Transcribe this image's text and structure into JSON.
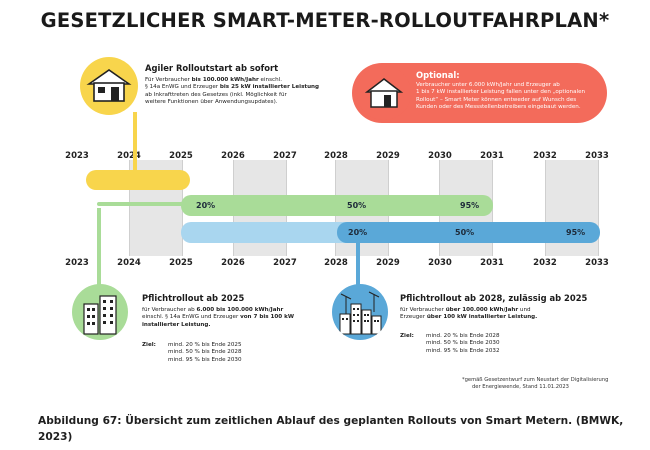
{
  "title": "GESETZLICHER SMART-METER-ROLLOUTFAHRPLAN*",
  "years": [
    "2023",
    "2024",
    "2025",
    "2026",
    "2027",
    "2028",
    "2029",
    "2030",
    "2031",
    "2032",
    "2033"
  ],
  "agile": {
    "heading": "Agiler Rolloutstart ab sofort",
    "line1_a": "Für Verbraucher ",
    "line1_b": "bis 100.000 kWh/Jahr",
    "line1_c": " einschl.",
    "line2_a": "§ 14a EnWG und Erzeuger ",
    "line2_b": "bis 25 kW installierter Leistung",
    "line3": "ab Inkrafttreten des Gesetzes (inkl. Möglichkeit für",
    "line4": "weitere Funktionen über Anwendungsupdates)."
  },
  "optional": {
    "heading": "Optional:",
    "line1": "Verbraucher unter 6.000 kWh/Jahr und Erzeuger ab",
    "line2": "1 bis 7 kW installierter Leistung fallen unter den „optionalen",
    "line3": "Rollout“ – Smart Meter können entweder auf Wunsch des",
    "line4": "Kunden oder des Messstellenbetreibers eingebaut werden."
  },
  "bar_green": {
    "p1": "20%",
    "p2": "50%",
    "p3": "95%"
  },
  "bar_blue": {
    "p1": "20%",
    "p2": "50%",
    "p3": "95%"
  },
  "pflicht2025": {
    "heading": "Pflichtrollout ab 2025",
    "line1_a": "für Verbraucher ab ",
    "line1_b": "6.000 bis 100.000 kWh/Jahr",
    "line2_a": "einschl. § 14a EnWG und Erzeuger ",
    "line2_b": "von 7 bis 100 kW",
    "line3": "installierter Leistung.",
    "ziel_label": "Ziel:",
    "ziel": [
      "mind. 20 % bis Ende 2025",
      "mind. 50 % bis Ende 2028",
      "mind. 95 % bis Ende 2030"
    ]
  },
  "pflicht2028": {
    "heading": "Pflichtrollout ab 2028, zulässig ab 2025",
    "line1_a": "für Verbraucher ",
    "line1_b": "über 100.000 kWh/Jahr",
    "line1_c": " und",
    "line2_a": "Erzeuger ",
    "line2_b": "über 100 kW installierter Leistung.",
    "ziel_label": "Ziel:",
    "ziel": [
      "mind. 20 % bis Ende 2028",
      "mind. 50 % bis Ende 2030",
      "mind. 95 % bis Ende 2032"
    ]
  },
  "footnote": [
    "*gemäß Gesetzentwurf zum Neustart der Digitalisierung",
    "der Energiewende, Stand 11.01.2023"
  ],
  "caption": "Abbildung 67: Übersicht zum zeitlichen Ablauf des geplanten Rollouts von Smart Metern. (BMWK, 2023)",
  "colors": {
    "yellow": "#f8d54c",
    "green": "#a9dc98",
    "blue_light": "#a9d6ef",
    "blue": "#5aa8d8",
    "red": "#f36b5b",
    "shade": "#e6e6e6"
  },
  "icons": [
    "house-icon",
    "house-red-icon",
    "apartment-building-icon",
    "industrial-city-icon"
  ]
}
